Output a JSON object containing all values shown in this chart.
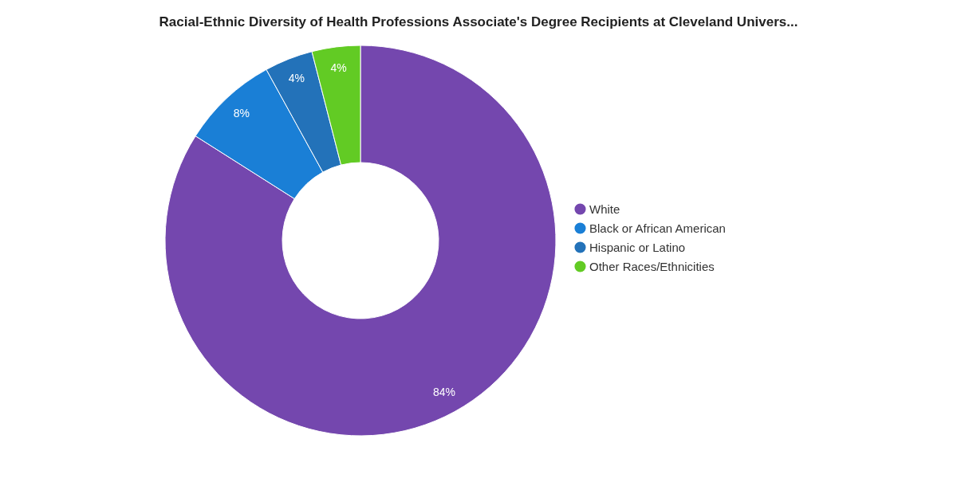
{
  "chart_data": {
    "type": "donut",
    "title": "Racial-Ethnic Diversity of Health Professions Associate's Degree Recipients at Cleveland Univers...",
    "categories": [
      "White",
      "Black or African American",
      "Hispanic or Latino",
      "Other Races/Ethnicities"
    ],
    "values": [
      84,
      8,
      4,
      4
    ],
    "colors": [
      "#7447ae",
      "#1a7fd6",
      "#2372b9",
      "#62cb24"
    ],
    "value_labels": [
      "84%",
      "8%",
      "4%",
      "4%"
    ],
    "legend": "right"
  }
}
